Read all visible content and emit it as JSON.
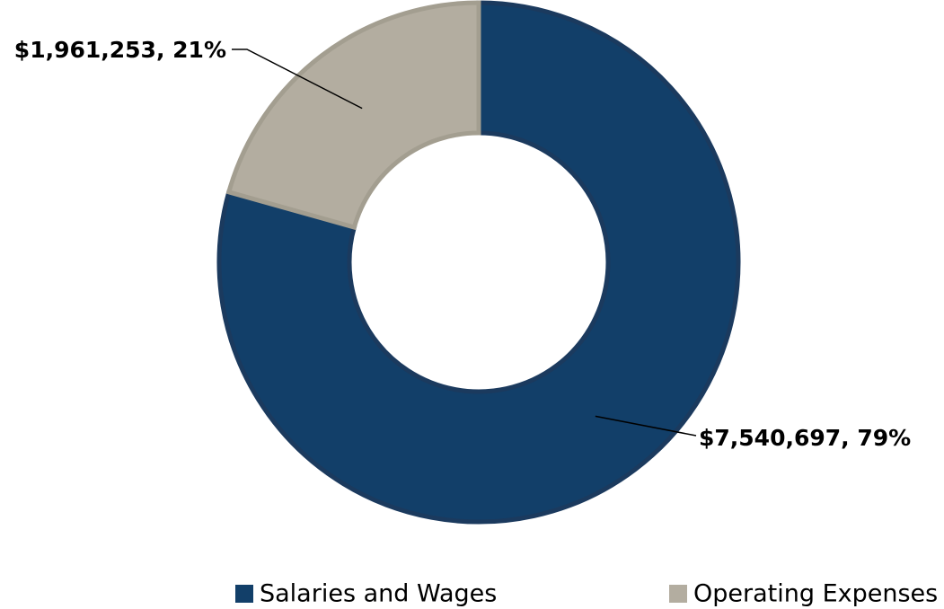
{
  "chart_data": {
    "type": "donut",
    "categories": [
      "Salaries and Wages",
      "Operating Expenses"
    ],
    "values": [
      7540697,
      1961253
    ],
    "value_labels": [
      "$7,540,697, 79%",
      "$1,961,253, 21%"
    ],
    "colors": [
      "#123f69",
      "#b3ada0"
    ],
    "legend": "bottom"
  }
}
